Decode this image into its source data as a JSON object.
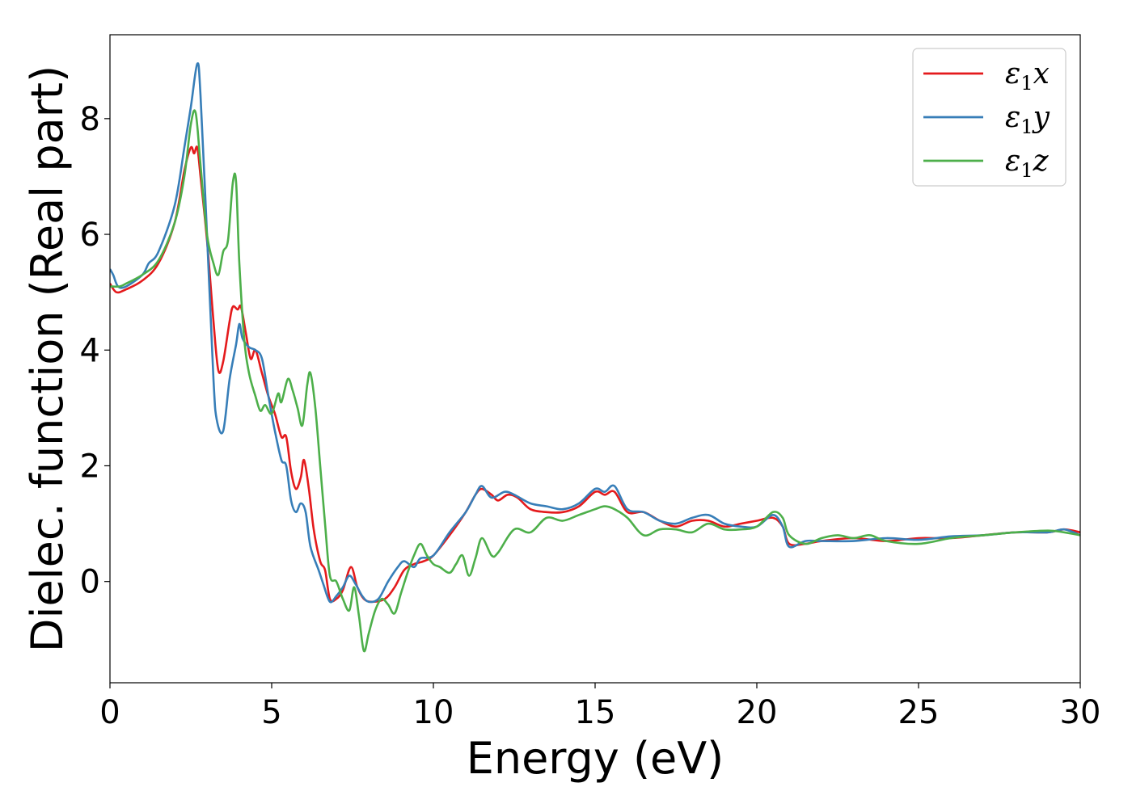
{
  "chart_data": {
    "type": "line",
    "xlabel": "Energy (eV)",
    "ylabel": "Dielec. function (Real part)",
    "xlim": [
      0,
      30
    ],
    "ylim": [
      -1.75,
      9.45
    ],
    "xticks": [
      0,
      5,
      10,
      15,
      20,
      25,
      30
    ],
    "yticks": [
      0,
      2,
      4,
      6,
      8
    ],
    "grid": false,
    "legend_position": "top-right",
    "series": [
      {
        "name": "ε1x",
        "legend": {
          "base": "ε",
          "sub": "1",
          "suffix": "x"
        },
        "color": "#e41a1c",
        "points": [
          [
            0,
            5.15
          ],
          [
            0.2,
            5.0
          ],
          [
            0.5,
            5.05
          ],
          [
            1,
            5.2
          ],
          [
            1.5,
            5.5
          ],
          [
            2,
            6.2
          ],
          [
            2.3,
            7.1
          ],
          [
            2.5,
            7.5
          ],
          [
            2.6,
            7.4
          ],
          [
            2.7,
            7.5
          ],
          [
            2.8,
            7.0
          ],
          [
            3.0,
            5.9
          ],
          [
            3.2,
            4.5
          ],
          [
            3.35,
            3.65
          ],
          [
            3.5,
            3.8
          ],
          [
            3.7,
            4.5
          ],
          [
            3.8,
            4.75
          ],
          [
            3.95,
            4.7
          ],
          [
            4.05,
            4.75
          ],
          [
            4.2,
            4.3
          ],
          [
            4.35,
            3.85
          ],
          [
            4.5,
            4.0
          ],
          [
            4.7,
            3.6
          ],
          [
            4.9,
            3.2
          ],
          [
            5.1,
            2.9
          ],
          [
            5.3,
            2.5
          ],
          [
            5.45,
            2.5
          ],
          [
            5.6,
            1.9
          ],
          [
            5.75,
            1.6
          ],
          [
            5.9,
            1.8
          ],
          [
            6.0,
            2.1
          ],
          [
            6.15,
            1.6
          ],
          [
            6.3,
            0.9
          ],
          [
            6.5,
            0.35
          ],
          [
            6.65,
            0.2
          ],
          [
            6.8,
            -0.3
          ],
          [
            7.0,
            -0.3
          ],
          [
            7.2,
            -0.15
          ],
          [
            7.45,
            0.25
          ],
          [
            7.65,
            -0.1
          ],
          [
            7.85,
            -0.3
          ],
          [
            8.1,
            -0.35
          ],
          [
            8.5,
            -0.3
          ],
          [
            8.8,
            -0.1
          ],
          [
            9.1,
            0.2
          ],
          [
            9.4,
            0.3
          ],
          [
            9.7,
            0.35
          ],
          [
            10,
            0.45
          ],
          [
            10.5,
            0.8
          ],
          [
            11,
            1.2
          ],
          [
            11.3,
            1.5
          ],
          [
            11.5,
            1.6
          ],
          [
            11.8,
            1.5
          ],
          [
            12.0,
            1.4
          ],
          [
            12.3,
            1.5
          ],
          [
            12.6,
            1.45
          ],
          [
            13.0,
            1.25
          ],
          [
            13.5,
            1.2
          ],
          [
            14.0,
            1.2
          ],
          [
            14.5,
            1.3
          ],
          [
            15.0,
            1.55
          ],
          [
            15.3,
            1.5
          ],
          [
            15.6,
            1.55
          ],
          [
            16.0,
            1.2
          ],
          [
            16.5,
            1.2
          ],
          [
            17.0,
            1.05
          ],
          [
            17.5,
            0.95
          ],
          [
            18.0,
            1.05
          ],
          [
            18.5,
            1.05
          ],
          [
            19.0,
            0.95
          ],
          [
            19.5,
            1.0
          ],
          [
            20.0,
            1.05
          ],
          [
            20.5,
            1.1
          ],
          [
            20.8,
            0.95
          ],
          [
            21.0,
            0.65
          ],
          [
            21.5,
            0.65
          ],
          [
            22.0,
            0.7
          ],
          [
            23.0,
            0.75
          ],
          [
            24.0,
            0.7
          ],
          [
            25.0,
            0.75
          ],
          [
            26.0,
            0.75
          ],
          [
            27.0,
            0.8
          ],
          [
            28.0,
            0.85
          ],
          [
            29.0,
            0.85
          ],
          [
            29.5,
            0.9
          ],
          [
            30,
            0.85
          ]
        ]
      },
      {
        "name": "ε1y",
        "legend": {
          "base": "ε",
          "sub": "1",
          "suffix": "y"
        },
        "color": "#377eb8",
        "points": [
          [
            0,
            5.4
          ],
          [
            0.1,
            5.3
          ],
          [
            0.25,
            5.1
          ],
          [
            0.5,
            5.1
          ],
          [
            1,
            5.3
          ],
          [
            1.2,
            5.5
          ],
          [
            1.5,
            5.7
          ],
          [
            2.0,
            6.5
          ],
          [
            2.3,
            7.5
          ],
          [
            2.5,
            8.2
          ],
          [
            2.7,
            8.95
          ],
          [
            2.8,
            8.4
          ],
          [
            3.0,
            6.0
          ],
          [
            3.2,
            3.5
          ],
          [
            3.3,
            2.8
          ],
          [
            3.5,
            2.6
          ],
          [
            3.7,
            3.5
          ],
          [
            3.9,
            4.1
          ],
          [
            4.0,
            4.45
          ],
          [
            4.1,
            4.2
          ],
          [
            4.3,
            4.05
          ],
          [
            4.5,
            4.0
          ],
          [
            4.7,
            3.85
          ],
          [
            4.9,
            3.2
          ],
          [
            5.1,
            2.6
          ],
          [
            5.3,
            2.1
          ],
          [
            5.45,
            2.0
          ],
          [
            5.6,
            1.4
          ],
          [
            5.75,
            1.2
          ],
          [
            5.9,
            1.35
          ],
          [
            6.05,
            1.2
          ],
          [
            6.2,
            0.6
          ],
          [
            6.45,
            0.2
          ],
          [
            6.6,
            -0.05
          ],
          [
            6.8,
            -0.35
          ],
          [
            7.0,
            -0.25
          ],
          [
            7.2,
            -0.1
          ],
          [
            7.4,
            0.1
          ],
          [
            7.6,
            -0.05
          ],
          [
            7.8,
            -0.25
          ],
          [
            8.0,
            -0.35
          ],
          [
            8.3,
            -0.3
          ],
          [
            8.6,
            0.0
          ],
          [
            8.9,
            0.25
          ],
          [
            9.1,
            0.35
          ],
          [
            9.4,
            0.25
          ],
          [
            9.6,
            0.4
          ],
          [
            10,
            0.45
          ],
          [
            10.5,
            0.85
          ],
          [
            11,
            1.2
          ],
          [
            11.3,
            1.5
          ],
          [
            11.5,
            1.65
          ],
          [
            11.8,
            1.45
          ],
          [
            12.2,
            1.55
          ],
          [
            12.5,
            1.5
          ],
          [
            13.0,
            1.35
          ],
          [
            13.5,
            1.3
          ],
          [
            14.0,
            1.25
          ],
          [
            14.5,
            1.35
          ],
          [
            15.0,
            1.6
          ],
          [
            15.3,
            1.55
          ],
          [
            15.6,
            1.65
          ],
          [
            16.0,
            1.25
          ],
          [
            16.5,
            1.2
          ],
          [
            17.0,
            1.05
          ],
          [
            17.5,
            1.0
          ],
          [
            18.0,
            1.1
          ],
          [
            18.5,
            1.15
          ],
          [
            19.0,
            1.0
          ],
          [
            19.5,
            0.95
          ],
          [
            20.0,
            0.95
          ],
          [
            20.5,
            1.15
          ],
          [
            20.8,
            0.95
          ],
          [
            21.0,
            0.6
          ],
          [
            21.5,
            0.7
          ],
          [
            22.0,
            0.7
          ],
          [
            23.0,
            0.7
          ],
          [
            24.0,
            0.75
          ],
          [
            25.0,
            0.72
          ],
          [
            26.0,
            0.78
          ],
          [
            27.0,
            0.8
          ],
          [
            28.0,
            0.85
          ],
          [
            29.0,
            0.85
          ],
          [
            29.5,
            0.9
          ],
          [
            30,
            0.8
          ]
        ]
      },
      {
        "name": "ε1z",
        "legend": {
          "base": "ε",
          "sub": "1",
          "suffix": "z"
        },
        "color": "#4daf4a",
        "points": [
          [
            0,
            5.1
          ],
          [
            0.3,
            5.1
          ],
          [
            0.5,
            5.15
          ],
          [
            1,
            5.3
          ],
          [
            1.5,
            5.55
          ],
          [
            2.0,
            6.2
          ],
          [
            2.3,
            7.0
          ],
          [
            2.5,
            7.9
          ],
          [
            2.65,
            8.1
          ],
          [
            2.8,
            7.2
          ],
          [
            3.0,
            6.0
          ],
          [
            3.2,
            5.5
          ],
          [
            3.35,
            5.3
          ],
          [
            3.5,
            5.7
          ],
          [
            3.65,
            5.9
          ],
          [
            3.8,
            6.9
          ],
          [
            3.9,
            6.9
          ],
          [
            4.0,
            5.5
          ],
          [
            4.15,
            4.2
          ],
          [
            4.3,
            3.6
          ],
          [
            4.5,
            3.2
          ],
          [
            4.65,
            2.95
          ],
          [
            4.8,
            3.05
          ],
          [
            5.0,
            2.9
          ],
          [
            5.2,
            3.25
          ],
          [
            5.3,
            3.1
          ],
          [
            5.5,
            3.5
          ],
          [
            5.65,
            3.3
          ],
          [
            5.8,
            3.0
          ],
          [
            5.95,
            2.7
          ],
          [
            6.1,
            3.4
          ],
          [
            6.2,
            3.6
          ],
          [
            6.35,
            3.0
          ],
          [
            6.5,
            2.0
          ],
          [
            6.65,
            1.0
          ],
          [
            6.8,
            0.1
          ],
          [
            7.0,
            0.0
          ],
          [
            7.2,
            -0.3
          ],
          [
            7.4,
            -0.5
          ],
          [
            7.55,
            -0.1
          ],
          [
            7.7,
            -0.6
          ],
          [
            7.85,
            -1.2
          ],
          [
            8.0,
            -0.9
          ],
          [
            8.2,
            -0.5
          ],
          [
            8.4,
            -0.3
          ],
          [
            8.6,
            -0.4
          ],
          [
            8.8,
            -0.55
          ],
          [
            9.0,
            -0.2
          ],
          [
            9.2,
            0.15
          ],
          [
            9.4,
            0.45
          ],
          [
            9.6,
            0.65
          ],
          [
            9.8,
            0.45
          ],
          [
            10.0,
            0.3
          ],
          [
            10.2,
            0.25
          ],
          [
            10.5,
            0.15
          ],
          [
            10.7,
            0.3
          ],
          [
            10.9,
            0.45
          ],
          [
            11.1,
            0.1
          ],
          [
            11.3,
            0.4
          ],
          [
            11.5,
            0.75
          ],
          [
            11.8,
            0.45
          ],
          [
            12.0,
            0.5
          ],
          [
            12.5,
            0.9
          ],
          [
            13.0,
            0.85
          ],
          [
            13.5,
            1.1
          ],
          [
            14.0,
            1.05
          ],
          [
            14.5,
            1.15
          ],
          [
            15.0,
            1.25
          ],
          [
            15.3,
            1.3
          ],
          [
            15.6,
            1.25
          ],
          [
            16.0,
            1.1
          ],
          [
            16.5,
            0.8
          ],
          [
            17.0,
            0.9
          ],
          [
            17.5,
            0.9
          ],
          [
            18.0,
            0.85
          ],
          [
            18.5,
            1.0
          ],
          [
            19.0,
            0.9
          ],
          [
            19.5,
            0.9
          ],
          [
            20.0,
            0.95
          ],
          [
            20.5,
            1.2
          ],
          [
            20.8,
            1.1
          ],
          [
            21.0,
            0.8
          ],
          [
            21.5,
            0.65
          ],
          [
            22.0,
            0.75
          ],
          [
            22.5,
            0.8
          ],
          [
            23.0,
            0.75
          ],
          [
            23.5,
            0.8
          ],
          [
            24.0,
            0.7
          ],
          [
            25.0,
            0.65
          ],
          [
            26.0,
            0.75
          ],
          [
            27.0,
            0.8
          ],
          [
            28.0,
            0.85
          ],
          [
            29.0,
            0.88
          ],
          [
            29.5,
            0.85
          ],
          [
            30,
            0.8
          ]
        ]
      }
    ]
  }
}
